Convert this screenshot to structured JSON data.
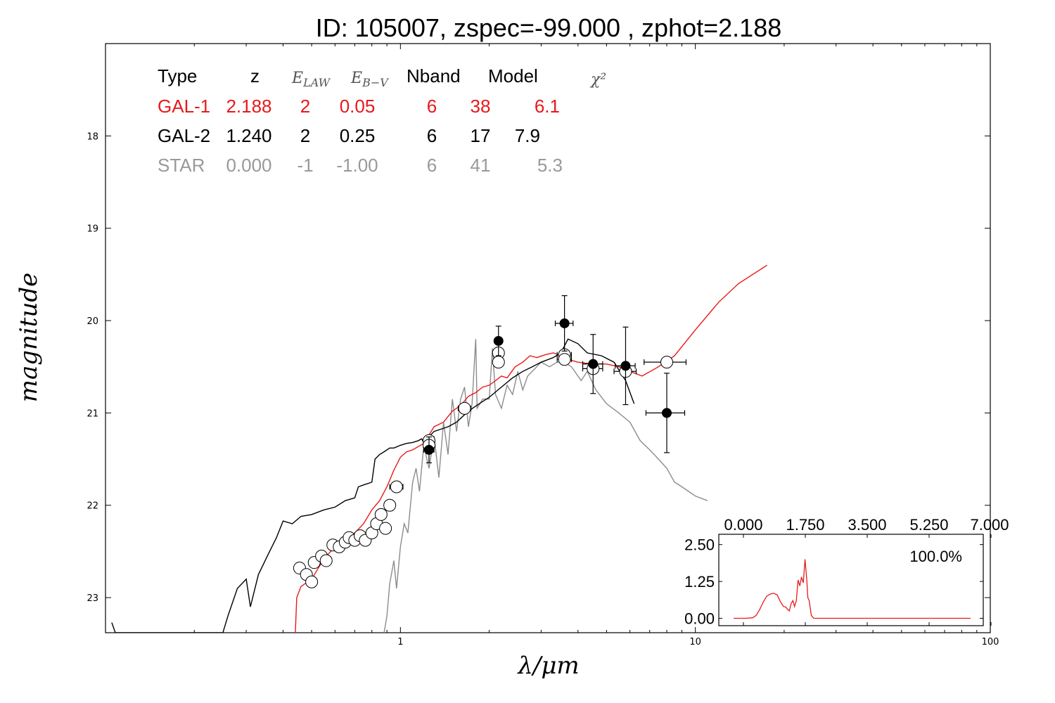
{
  "chart_data": {
    "type": "scatter",
    "title": "ID:  105007, zspec=-99.000 , zphot=2.188",
    "xlabel": "λ/μm",
    "ylabel": "magnitude",
    "xscale": "log",
    "xlim": [
      0.1,
      100
    ],
    "ylim": [
      23.38,
      17.0
    ],
    "x_tick_labels": [
      "1",
      "10",
      "100"
    ],
    "y_tick_labels": [
      "18",
      "19",
      "20",
      "21",
      "22",
      "23"
    ],
    "table": {
      "headers": [
        "Type",
        "z",
        "E_LAW",
        "E_B-V",
        "Nband",
        "Model",
        "χ²"
      ],
      "rows": [
        {
          "type": "GAL-1",
          "z": "2.188",
          "elaw": "2",
          "ebv": "0.05",
          "nband": "6",
          "model": "38",
          "chi2": "6.1",
          "color": "#e8191b"
        },
        {
          "type": "GAL-2",
          "z": "1.240",
          "elaw": "2",
          "ebv": "0.25",
          "nband": "6",
          "model": "17",
          "chi2": "7.9",
          "color": "#000000"
        },
        {
          "type": "STAR",
          "z": "0.000",
          "elaw": "-1",
          "ebv": "-1.00",
          "nband": "6",
          "model": "41",
          "chi2": "5.3",
          "color": "#999999"
        }
      ]
    },
    "series": [
      {
        "name": "GAL-1",
        "kind": "line",
        "color": "#e8191b",
        "points": [
          [
            0.44,
            23.4
          ],
          [
            0.445,
            23.0
          ],
          [
            0.46,
            22.88
          ],
          [
            0.5,
            22.8
          ],
          [
            0.55,
            22.58
          ],
          [
            0.6,
            22.45
          ],
          [
            0.65,
            22.35
          ],
          [
            0.7,
            22.3
          ],
          [
            0.75,
            22.2
          ],
          [
            0.8,
            22.05
          ],
          [
            0.85,
            21.95
          ],
          [
            0.9,
            21.8
          ],
          [
            0.95,
            21.62
          ],
          [
            1.0,
            21.48
          ],
          [
            1.05,
            21.42
          ],
          [
            1.1,
            21.4
          ],
          [
            1.2,
            21.33
          ],
          [
            1.3,
            21.15
          ],
          [
            1.4,
            21.1
          ],
          [
            1.5,
            20.98
          ],
          [
            1.6,
            20.92
          ],
          [
            1.7,
            20.82
          ],
          [
            1.8,
            20.78
          ],
          [
            1.9,
            20.72
          ],
          [
            2.0,
            20.7
          ],
          [
            2.1,
            20.65
          ],
          [
            2.2,
            20.6
          ],
          [
            2.3,
            20.62
          ],
          [
            2.45,
            20.5
          ],
          [
            2.6,
            20.45
          ],
          [
            2.75,
            20.38
          ],
          [
            2.9,
            20.4
          ],
          [
            3.1,
            20.37
          ],
          [
            3.3,
            20.35
          ],
          [
            3.5,
            20.38
          ],
          [
            3.7,
            20.42
          ],
          [
            4.0,
            20.45
          ],
          [
            4.5,
            20.47
          ],
          [
            5.0,
            20.47
          ],
          [
            5.5,
            20.5
          ],
          [
            6.0,
            20.55
          ],
          [
            6.6,
            20.6
          ],
          [
            7.5,
            20.5
          ],
          [
            8.5,
            20.38
          ],
          [
            10,
            20.1
          ],
          [
            12,
            19.8
          ],
          [
            14,
            19.6
          ],
          [
            17.5,
            19.4
          ]
        ]
      },
      {
        "name": "GAL-2",
        "kind": "line",
        "color": "#000000",
        "points": [
          [
            0.105,
            23.27
          ],
          [
            0.108,
            23.38
          ],
          [
            0.25,
            23.38
          ],
          [
            0.26,
            23.2
          ],
          [
            0.28,
            22.9
          ],
          [
            0.3,
            22.8
          ],
          [
            0.31,
            23.1
          ],
          [
            0.33,
            22.75
          ],
          [
            0.36,
            22.5
          ],
          [
            0.38,
            22.35
          ],
          [
            0.4,
            22.17
          ],
          [
            0.43,
            22.2
          ],
          [
            0.46,
            22.12
          ],
          [
            0.5,
            22.1
          ],
          [
            0.55,
            22.05
          ],
          [
            0.6,
            22.02
          ],
          [
            0.65,
            21.95
          ],
          [
            0.7,
            21.92
          ],
          [
            0.72,
            21.8
          ],
          [
            0.75,
            21.78
          ],
          [
            0.8,
            21.75
          ],
          [
            0.82,
            21.5
          ],
          [
            0.85,
            21.45
          ],
          [
            0.88,
            21.42
          ],
          [
            0.92,
            21.38
          ],
          [
            0.95,
            21.38
          ],
          [
            1.0,
            21.35
          ],
          [
            1.05,
            21.33
          ],
          [
            1.1,
            21.32
          ],
          [
            1.15,
            21.3
          ],
          [
            1.18,
            21.28
          ],
          [
            1.2,
            21.32
          ],
          [
            1.3,
            21.2
          ],
          [
            1.45,
            21.15
          ],
          [
            1.55,
            21.1
          ],
          [
            1.7,
            20.98
          ],
          [
            1.85,
            20.9
          ],
          [
            2.0,
            20.83
          ],
          [
            2.2,
            20.72
          ],
          [
            2.4,
            20.62
          ],
          [
            2.6,
            20.55
          ],
          [
            2.8,
            20.5
          ],
          [
            3.0,
            20.45
          ],
          [
            3.3,
            20.4
          ],
          [
            3.5,
            20.35
          ],
          [
            3.7,
            20.2
          ],
          [
            4.0,
            20.25
          ],
          [
            4.3,
            20.35
          ],
          [
            4.8,
            20.38
          ],
          [
            5.3,
            20.45
          ],
          [
            5.8,
            20.65
          ],
          [
            6.2,
            20.9
          ]
        ]
      },
      {
        "name": "STAR",
        "kind": "line",
        "color": "#8c8c8c",
        "points": [
          [
            0.88,
            23.38
          ],
          [
            0.9,
            23.2
          ],
          [
            0.92,
            22.85
          ],
          [
            0.95,
            22.6
          ],
          [
            0.97,
            22.9
          ],
          [
            1.0,
            22.45
          ],
          [
            1.03,
            22.2
          ],
          [
            1.06,
            22.3
          ],
          [
            1.1,
            21.75
          ],
          [
            1.13,
            21.6
          ],
          [
            1.16,
            21.85
          ],
          [
            1.2,
            21.35
          ],
          [
            1.25,
            21.6
          ],
          [
            1.3,
            21.25
          ],
          [
            1.35,
            21.7
          ],
          [
            1.4,
            21.1
          ],
          [
            1.45,
            21.45
          ],
          [
            1.5,
            20.85
          ],
          [
            1.55,
            21.2
          ],
          [
            1.6,
            20.85
          ],
          [
            1.65,
            20.72
          ],
          [
            1.7,
            21.15
          ],
          [
            1.75,
            20.9
          ],
          [
            1.8,
            20.2
          ],
          [
            1.82,
            20.95
          ],
          [
            1.9,
            20.85
          ],
          [
            2.0,
            20.85
          ],
          [
            2.05,
            20.3
          ],
          [
            2.1,
            20.8
          ],
          [
            2.2,
            20.95
          ],
          [
            2.3,
            20.7
          ],
          [
            2.4,
            20.8
          ],
          [
            2.5,
            20.55
          ],
          [
            2.6,
            20.75
          ],
          [
            2.7,
            20.6
          ],
          [
            2.8,
            20.55
          ],
          [
            3.0,
            20.45
          ],
          [
            3.2,
            20.5
          ],
          [
            3.4,
            20.45
          ],
          [
            3.6,
            20.45
          ],
          [
            3.8,
            20.5
          ],
          [
            4.1,
            20.65
          ],
          [
            4.3,
            20.55
          ],
          [
            4.6,
            20.75
          ],
          [
            5.0,
            20.9
          ],
          [
            5.5,
            21.0
          ],
          [
            6.0,
            21.1
          ],
          [
            6.5,
            21.3
          ],
          [
            7.0,
            21.4
          ],
          [
            7.5,
            21.5
          ],
          [
            8.0,
            21.6
          ],
          [
            8.5,
            21.75
          ],
          [
            9.0,
            21.8
          ],
          [
            10.0,
            21.9
          ],
          [
            11.0,
            21.95
          ]
        ]
      },
      {
        "name": "model-mag-open",
        "kind": "points",
        "style": "open",
        "points": [
          {
            "x": 0.455,
            "y": 22.68,
            "xerr": 0.015,
            "yerr": 0
          },
          {
            "x": 0.48,
            "y": 22.75,
            "xerr": 0.015,
            "yerr": 0
          },
          {
            "x": 0.5,
            "y": 22.83,
            "xerr": 0.015,
            "yerr": 0
          },
          {
            "x": 0.51,
            "y": 22.62,
            "xerr": 0.015,
            "yerr": 0
          },
          {
            "x": 0.54,
            "y": 22.55,
            "xerr": 0.015,
            "yerr": 0
          },
          {
            "x": 0.56,
            "y": 22.6,
            "xerr": 0.015,
            "yerr": 0
          },
          {
            "x": 0.59,
            "y": 22.43,
            "xerr": 0.015,
            "yerr": 0
          },
          {
            "x": 0.62,
            "y": 22.45,
            "xerr": 0.015,
            "yerr": 0
          },
          {
            "x": 0.65,
            "y": 22.4,
            "xerr": 0.015,
            "yerr": 0
          },
          {
            "x": 0.67,
            "y": 22.35,
            "xerr": 0.015,
            "yerr": 0
          },
          {
            "x": 0.7,
            "y": 22.38,
            "xerr": 0.015,
            "yerr": 0
          },
          {
            "x": 0.73,
            "y": 22.33,
            "xerr": 0.015,
            "yerr": 0
          },
          {
            "x": 0.76,
            "y": 22.38,
            "xerr": 0.015,
            "yerr": 0
          },
          {
            "x": 0.8,
            "y": 22.3,
            "xerr": 0.015,
            "yerr": 0
          },
          {
            "x": 0.83,
            "y": 22.2,
            "xerr": 0.015,
            "yerr": 0
          },
          {
            "x": 0.86,
            "y": 22.1,
            "xerr": 0.015,
            "yerr": 0
          },
          {
            "x": 0.89,
            "y": 22.25,
            "xerr": 0.015,
            "yerr": 0
          },
          {
            "x": 0.92,
            "y": 22.0,
            "xerr": 0.02,
            "yerr": 0
          },
          {
            "x": 0.97,
            "y": 21.8,
            "xerr": 0.05,
            "yerr": 0
          },
          {
            "x": 1.25,
            "y": 21.3,
            "xerr": 0.05,
            "yerr": 0
          },
          {
            "x": 1.25,
            "y": 21.35,
            "xerr": 0.05,
            "yerr": 0
          },
          {
            "x": 1.65,
            "y": 20.95,
            "xerr": 0.08,
            "yerr": 0
          },
          {
            "x": 2.15,
            "y": 20.35,
            "xerr": 0.05,
            "yerr": 0
          },
          {
            "x": 2.15,
            "y": 20.45,
            "xerr": 0.05,
            "yerr": 0
          },
          {
            "x": 3.6,
            "y": 20.37,
            "xerr": 0.2,
            "yerr": 0
          },
          {
            "x": 3.6,
            "y": 20.42,
            "xerr": 0.2,
            "yerr": 0
          },
          {
            "x": 4.5,
            "y": 20.52,
            "xerr": 0.35,
            "yerr": 0
          },
          {
            "x": 5.8,
            "y": 20.55,
            "xerr": 0.5,
            "yerr": 0
          },
          {
            "x": 8.0,
            "y": 20.45,
            "xerr": 1.3,
            "yerr": 0
          }
        ]
      },
      {
        "name": "observed-mag",
        "kind": "points",
        "style": "filled",
        "points": [
          {
            "x": 1.25,
            "y": 21.4,
            "xerr": 0.05,
            "yerr": 0.14
          },
          {
            "x": 2.15,
            "y": 20.22,
            "xerr": 0.05,
            "yerr": 0.16
          },
          {
            "x": 3.6,
            "y": 20.03,
            "xerr": 0.25,
            "yerr": 0.3
          },
          {
            "x": 4.5,
            "y": 20.47,
            "xerr": 0.35,
            "yerr": 0.32
          },
          {
            "x": 5.8,
            "y": 20.49,
            "xerr": 0.45,
            "yerr": 0.42
          },
          {
            "x": 8.0,
            "y": 21.0,
            "xerr": 1.2,
            "yerr": 0.43
          }
        ]
      }
    ],
    "inset": {
      "type": "line",
      "label": "100.0%",
      "xlim": [
        0,
        7
      ],
      "ylim": [
        -0.25,
        2.85
      ],
      "x_tick_labels": [
        "0.000",
        "1.750",
        "3.500",
        "5.250",
        "7.000"
      ],
      "y_tick_labels": [
        "0.00",
        "1.25",
        "2.50"
      ],
      "color": "#e8191b",
      "points": [
        [
          0.15,
          0.0
        ],
        [
          0.5,
          0.0
        ],
        [
          0.7,
          0.02
        ],
        [
          0.8,
          0.1
        ],
        [
          0.9,
          0.3
        ],
        [
          1.0,
          0.55
        ],
        [
          1.1,
          0.75
        ],
        [
          1.2,
          0.82
        ],
        [
          1.3,
          0.85
        ],
        [
          1.4,
          0.8
        ],
        [
          1.5,
          0.55
        ],
        [
          1.58,
          0.4
        ],
        [
          1.65,
          0.38
        ],
        [
          1.7,
          0.3
        ],
        [
          1.75,
          0.25
        ],
        [
          1.8,
          0.5
        ],
        [
          1.85,
          0.6
        ],
        [
          1.9,
          0.4
        ],
        [
          1.95,
          0.6
        ],
        [
          2.0,
          1.3
        ],
        [
          2.05,
          1.1
        ],
        [
          2.1,
          1.4
        ],
        [
          2.15,
          1.2
        ],
        [
          2.2,
          2.0
        ],
        [
          2.25,
          1.3
        ],
        [
          2.28,
          0.7
        ],
        [
          2.32,
          0.6
        ],
        [
          2.38,
          0.1
        ],
        [
          2.45,
          0.0
        ],
        [
          6.95,
          0.0
        ]
      ]
    }
  }
}
